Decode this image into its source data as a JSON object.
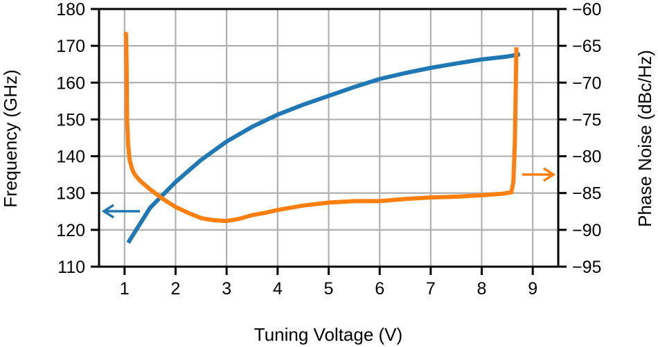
{
  "chart_data": {
    "type": "line",
    "title": "",
    "xlabel": "Tuning Voltage (V)",
    "ylabel": "Frequency (GHz)",
    "y2label": "Phase Noise (dBc/Hz)",
    "xlim": [
      0.5,
      9.5
    ],
    "ylim": [
      110,
      180
    ],
    "y2lim": [
      -95,
      -60
    ],
    "xticks": [
      1,
      2,
      3,
      4,
      5,
      6,
      7,
      8,
      9
    ],
    "yticks": [
      110,
      120,
      130,
      140,
      150,
      160,
      170,
      180
    ],
    "y2ticks": [
      -95,
      -90,
      -85,
      -80,
      -75,
      -70,
      -65,
      -60
    ],
    "y2tick_labels": [
      "−95",
      "−90",
      "−85",
      "−80",
      "−75",
      "−70",
      "−65",
      "−60"
    ],
    "grid": true,
    "legend": null,
    "annotations": [
      {
        "type": "arrow",
        "direction": "left",
        "series": "Frequency",
        "color": "#1f77b4",
        "points_to": "left axis"
      },
      {
        "type": "arrow",
        "direction": "right",
        "series": "Phase Noise",
        "color": "#ff7f0e",
        "points_to": "right axis"
      }
    ],
    "series": [
      {
        "name": "Frequency",
        "axis": "left",
        "color": "#1f77b4",
        "x": [
          1.07,
          1.5,
          2.0,
          2.5,
          3.0,
          3.5,
          4.0,
          4.5,
          5.0,
          5.5,
          6.0,
          6.5,
          7.0,
          7.5,
          8.0,
          8.5,
          8.75
        ],
        "values": [
          116.5,
          126.0,
          133.0,
          139.0,
          144.0,
          148.0,
          151.3,
          154.0,
          156.4,
          158.8,
          161.0,
          162.6,
          164.0,
          165.2,
          166.3,
          167.1,
          167.7
        ]
      },
      {
        "name": "Phase Noise",
        "axis": "right",
        "color": "#ff7f0e",
        "x": [
          0.99,
          1.03,
          1.04,
          1.05,
          1.07,
          1.1,
          1.15,
          1.2,
          1.3,
          1.5,
          1.75,
          2.0,
          2.25,
          2.5,
          2.75,
          3.0,
          3.25,
          3.5,
          3.75,
          4.0,
          4.5,
          5.0,
          5.5,
          6.0,
          6.5,
          7.0,
          7.5,
          8.0,
          8.4,
          8.58,
          8.62,
          8.65,
          8.68
        ],
        "values": [
          -63.3,
          -63.4,
          -68.0,
          -75.0,
          -78.5,
          -80.5,
          -81.8,
          -82.5,
          -83.3,
          -84.5,
          -85.8,
          -86.9,
          -87.7,
          -88.4,
          -88.7,
          -88.8,
          -88.5,
          -88.0,
          -87.7,
          -87.3,
          -86.7,
          -86.3,
          -86.1,
          -86.1,
          -85.8,
          -85.6,
          -85.5,
          -85.3,
          -85.1,
          -84.9,
          -83.5,
          -78.0,
          -65.2
        ]
      }
    ]
  },
  "axes": {
    "xlabel": "Tuning Voltage (V)",
    "ylabel": "Frequency (GHz)",
    "y2label": "Phase Noise (dBc/Hz)"
  }
}
